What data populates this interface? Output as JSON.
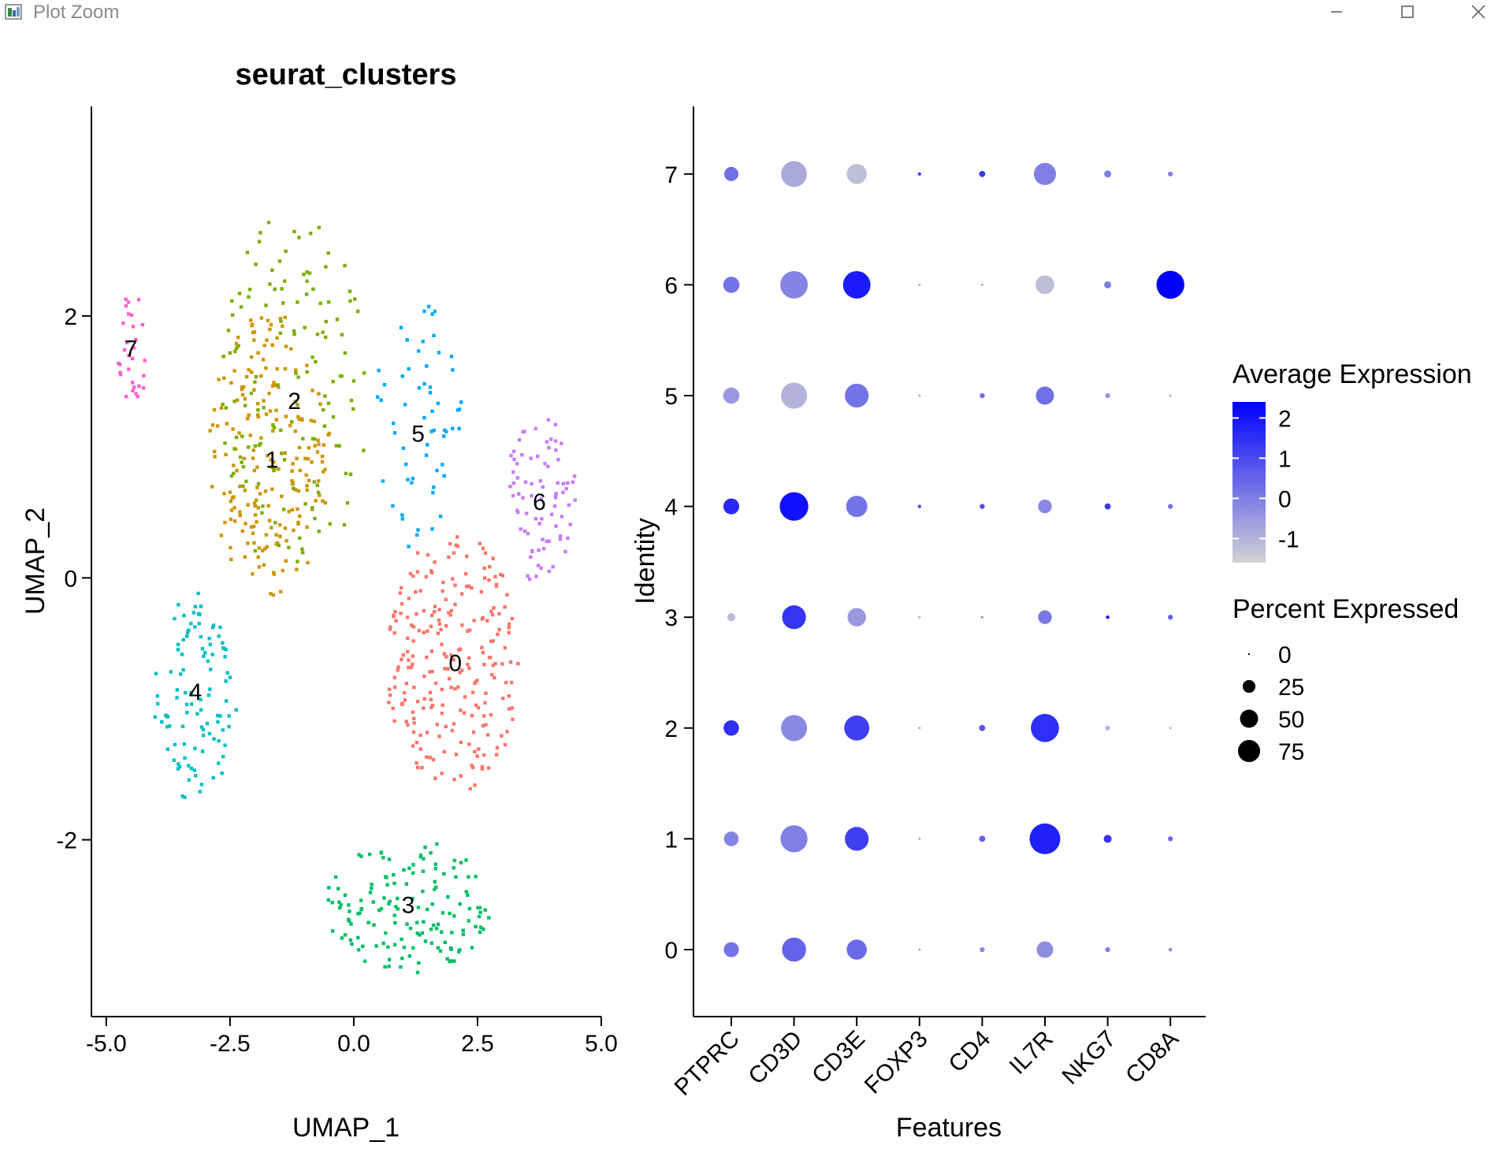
{
  "window": {
    "title": "Plot Zoom",
    "controls": {
      "minimize": "minimize",
      "maximize": "maximize",
      "close": "close"
    }
  },
  "chart_data": [
    {
      "type": "scatter",
      "title": "seurat_clusters",
      "xlabel": "UMAP_1",
      "ylabel": "UMAP_2",
      "xlim": [
        -5.3,
        5.0
      ],
      "ylim": [
        -3.35,
        3.6
      ],
      "xticks": [
        -5.0,
        -2.5,
        0.0,
        2.5,
        5.0
      ],
      "xtick_labels": [
        "-5.0",
        "-2.5",
        "0.0",
        "2.5",
        "5.0"
      ],
      "yticks": [
        -2,
        0,
        2
      ],
      "ytick_labels": [
        "-2",
        "0",
        "2"
      ],
      "clusters": [
        {
          "id": "0",
          "color": "#F8766D",
          "center": [
            2.0,
            -0.65
          ],
          "spread": [
            1.45,
            1.05
          ],
          "n": 240
        },
        {
          "id": "1",
          "color": "#CD9600",
          "center": [
            -1.7,
            0.95
          ],
          "spread": [
            1.3,
            1.15
          ],
          "n": 210
        },
        {
          "id": "2",
          "color": "#7CAE00",
          "center": [
            -1.2,
            1.4
          ],
          "spread": [
            1.55,
            1.5
          ],
          "n": 140
        },
        {
          "id": "3",
          "color": "#00BE67",
          "center": [
            1.1,
            -2.5
          ],
          "spread": [
            1.75,
            0.55
          ],
          "n": 150
        },
        {
          "id": "4",
          "color": "#00BFC4",
          "center": [
            -3.2,
            -0.9
          ],
          "spread": [
            0.9,
            0.85
          ],
          "n": 105
        },
        {
          "id": "5",
          "color": "#00A9FF",
          "center": [
            1.3,
            1.15
          ],
          "spread": [
            1.0,
            1.0
          ],
          "n": 60
        },
        {
          "id": "6",
          "color": "#C77CFF",
          "center": [
            3.8,
            0.6
          ],
          "spread": [
            0.75,
            0.75
          ],
          "n": 80
        },
        {
          "id": "7",
          "color": "#FF61CC",
          "center": [
            -4.5,
            1.75
          ],
          "spread": [
            0.35,
            0.5
          ],
          "n": 30
        }
      ],
      "cluster_labels": [
        {
          "text": "0",
          "x": 2.05,
          "y": -0.65
        },
        {
          "text": "1",
          "x": -1.65,
          "y": 0.9
        },
        {
          "text": "2",
          "x": -1.2,
          "y": 1.35
        },
        {
          "text": "3",
          "x": 1.1,
          "y": -2.5
        },
        {
          "text": "4",
          "x": -3.2,
          "y": -0.87
        },
        {
          "text": "5",
          "x": 1.3,
          "y": 1.1
        },
        {
          "text": "6",
          "x": 3.75,
          "y": 0.58
        },
        {
          "text": "7",
          "x": -4.5,
          "y": 1.75
        }
      ]
    },
    {
      "type": "dot",
      "xlabel": "Features",
      "ylabel": "Identity",
      "features": [
        "PTPRC",
        "CD3D",
        "CD3E",
        "FOXP3",
        "CD4",
        "IL7R",
        "NKG7",
        "CD8A"
      ],
      "identities": [
        "0",
        "1",
        "2",
        "3",
        "4",
        "5",
        "6",
        "7"
      ],
      "avg_expression": [
        [
          0.2,
          0.5,
          0.4,
          -1.0,
          -0.2,
          -0.3,
          0.0,
          -0.2
        ],
        [
          -0.1,
          0.0,
          1.2,
          -1.0,
          0.6,
          1.8,
          1.4,
          0.4
        ],
        [
          1.5,
          -0.2,
          1.2,
          -1.0,
          0.8,
          1.5,
          -1.1,
          -1.1
        ],
        [
          -1.1,
          1.4,
          -0.5,
          -1.0,
          -0.4,
          0.1,
          2.0,
          0.5
        ],
        [
          1.6,
          2.1,
          0.2,
          0.9,
          0.9,
          -0.2,
          1.3,
          0.2
        ],
        [
          -0.5,
          -1.0,
          0.2,
          -1.0,
          0.3,
          0.3,
          -0.4,
          -1.0
        ],
        [
          0.2,
          -0.1,
          1.9,
          -1.0,
          -1.0,
          -1.2,
          0.0,
          2.4
        ],
        [
          0.3,
          -0.8,
          -1.2,
          1.0,
          1.3,
          0.0,
          0.0,
          -0.1
        ]
      ],
      "pct_expressed": [
        [
          18,
          46,
          32,
          0.5,
          2,
          22,
          2,
          1
        ],
        [
          17,
          58,
          45,
          0.5,
          3,
          75,
          5,
          2
        ],
        [
          19,
          54,
          50,
          0.5,
          3,
          63,
          2,
          0.5
        ],
        [
          5,
          45,
          27,
          0.5,
          0.5,
          15,
          1,
          2
        ],
        [
          20,
          65,
          36,
          1,
          2,
          15,
          3,
          2
        ],
        [
          21,
          54,
          45,
          0.5,
          2,
          26,
          2,
          0.5
        ],
        [
          21,
          60,
          60,
          0.5,
          0.5,
          28,
          4,
          62
        ],
        [
          16,
          53,
          32,
          1,
          3,
          39,
          4,
          2
        ]
      ],
      "yticks": [
        "0",
        "1",
        "2",
        "3",
        "4",
        "5",
        "6",
        "7"
      ],
      "legend_color": {
        "title": "Average Expression",
        "ticks": [
          2,
          1,
          0,
          -1
        ],
        "tick_labels": [
          "2",
          "1",
          "0",
          "-1"
        ],
        "range": [
          -1.6,
          2.4
        ],
        "low_color": "#D3D3D3",
        "high_color": "#0000FF"
      },
      "legend_size": {
        "title": "Percent Expressed",
        "values": [
          0,
          25,
          50,
          75
        ],
        "labels": [
          "0",
          "25",
          "50",
          "75"
        ]
      }
    }
  ]
}
